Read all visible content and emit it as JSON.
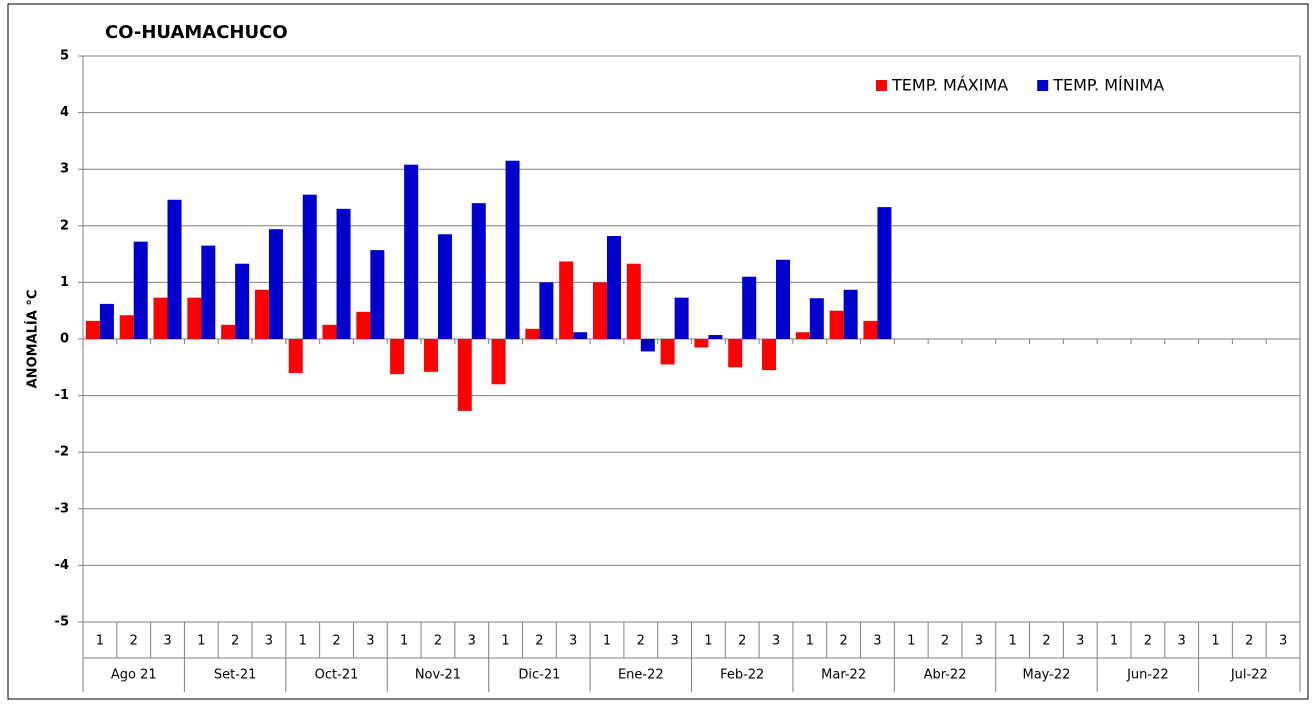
{
  "chart_data": {
    "type": "bar",
    "title": "CO-HUAMACHUCO",
    "y_label": "ANOMALÍA °C",
    "categories": [
      "1",
      "2",
      "3",
      "1",
      "2",
      "3",
      "1",
      "2",
      "3",
      "1",
      "2",
      "3",
      "1",
      "2",
      "3",
      "1",
      "2",
      "3",
      "1",
      "2",
      "3",
      "1",
      "2",
      "3",
      "1",
      "2",
      "3",
      "1",
      "2",
      "3",
      "1",
      "2",
      "3",
      "1",
      "2",
      "3"
    ],
    "groups": [
      "Ago 21",
      "Set-21",
      "Oct-21",
      "Nov-21",
      "Dic-21",
      "Ene-22",
      "Feb-22",
      "Mar-22",
      "Abr-22",
      "May-22",
      "Jun-22",
      "Jul-22"
    ],
    "series": [
      {
        "name": "TEMP. MÁXIMA",
        "color": "#ff0000",
        "values": [
          0.32,
          0.42,
          0.73,
          0.73,
          0.25,
          0.87,
          -0.6,
          0.25,
          0.48,
          -0.62,
          -0.58,
          -1.27,
          -0.8,
          0.18,
          1.37,
          1.0,
          1.33,
          -0.45,
          -0.15,
          -0.5,
          -0.55,
          0.12,
          0.5,
          0.32,
          null,
          null,
          null,
          null,
          null,
          null,
          null,
          null,
          null,
          null,
          null,
          null
        ]
      },
      {
        "name": "TEMP. MÍNIMA",
        "color": "#0000cc",
        "values": [
          0.62,
          1.72,
          2.46,
          1.65,
          1.33,
          1.94,
          2.55,
          2.3,
          1.57,
          3.08,
          1.85,
          2.4,
          3.15,
          1.0,
          0.12,
          1.82,
          -0.22,
          0.73,
          0.07,
          1.1,
          1.4,
          0.72,
          0.87,
          2.33,
          null,
          null,
          null,
          null,
          null,
          null,
          null,
          null,
          null,
          null,
          null,
          null
        ]
      }
    ],
    "ylim": [
      -5,
      5
    ],
    "yticks": [
      -5,
      -4,
      -3,
      -2,
      -1,
      0,
      1,
      2,
      3,
      4,
      5
    ],
    "grid": true,
    "legend": "top-right"
  }
}
